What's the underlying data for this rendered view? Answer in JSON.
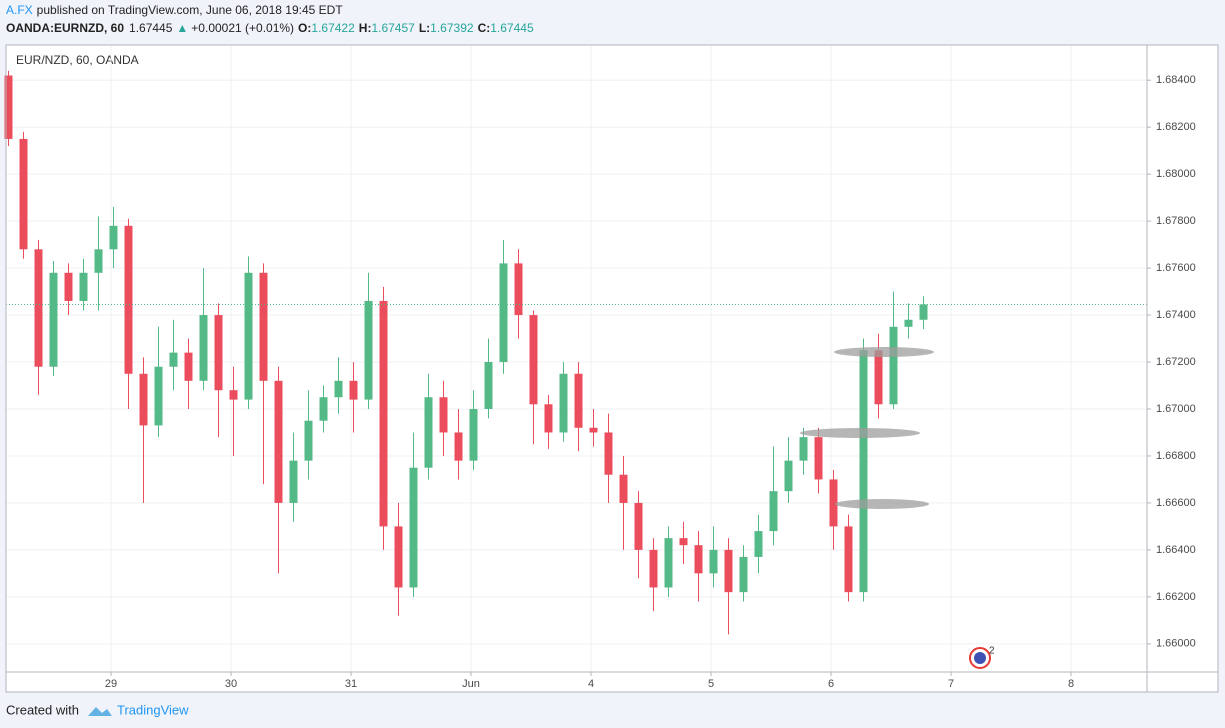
{
  "header": {
    "author": "A.FX",
    "published": "published on TradingView.com, June 06, 2018 19:45 EDT",
    "symbol": "OANDA:EURNZD, 60",
    "price": 1.67445,
    "change": "+0.00021 (+0.01%)",
    "ohlc": [
      {
        "label": "O:",
        "value": 1.67422
      },
      {
        "label": "H:",
        "value": 1.67457
      },
      {
        "label": "L:",
        "value": 1.67392
      },
      {
        "label": "C:",
        "value": 1.67445
      }
    ]
  },
  "footer": {
    "created": "Created with",
    "brand": "TradingView"
  },
  "chart_data": {
    "type": "candlestick",
    "title": "EUR/NZD, 60, OANDA",
    "badge": "2",
    "up_color": "#53b987",
    "down_color": "#eb4d5c",
    "grid": true,
    "last_price": 1.67445,
    "xlim": [
      0,
      228.2
    ],
    "xticks": [
      {
        "value": 21,
        "label": "29"
      },
      {
        "value": 45,
        "label": "30"
      },
      {
        "value": 69,
        "label": "31"
      },
      {
        "value": 93,
        "label": "Jun"
      },
      {
        "value": 117,
        "label": "4"
      },
      {
        "value": 141,
        "label": "5"
      },
      {
        "value": 165,
        "label": "6"
      },
      {
        "value": 189,
        "label": "7"
      },
      {
        "value": 213,
        "label": "8"
      }
    ],
    "ylim": [
      1.6588,
      1.6855
    ],
    "yticks": [
      {
        "value": 1.66,
        "label": "1.66000"
      },
      {
        "value": 1.662,
        "label": "1.66200"
      },
      {
        "value": 1.664,
        "label": "1.66400"
      },
      {
        "value": 1.666,
        "label": "1.66600"
      },
      {
        "value": 1.668,
        "label": "1.66800"
      },
      {
        "value": 1.67,
        "label": "1.67000"
      },
      {
        "value": 1.672,
        "label": "1.67200"
      },
      {
        "value": 1.674,
        "label": "1.67400"
      },
      {
        "value": 1.676,
        "label": "1.67600"
      },
      {
        "value": 1.678,
        "label": "1.67800"
      },
      {
        "value": 1.68,
        "label": "1.68000"
      },
      {
        "value": 1.682,
        "label": "1.68200"
      },
      {
        "value": 1.684,
        "label": "1.68400"
      }
    ],
    "x": [
      0.5,
      3.5,
      6.5,
      9.5,
      12.5,
      15.5,
      18.5,
      21.5,
      24.5,
      27.5,
      30.5,
      33.5,
      36.5,
      39.5,
      42.5,
      45.5,
      48.5,
      51.5,
      54.5,
      57.5,
      60.5,
      63.5,
      66.5,
      69.5,
      72.5,
      75.5,
      78.5,
      81.5,
      84.5,
      87.5,
      90.5,
      93.5,
      96.5,
      99.5,
      102.5,
      105.5,
      108.5,
      111.5,
      114.5,
      117.5,
      120.5,
      123.5,
      126.5,
      129.5,
      132.5,
      135.5,
      138.5,
      141.5,
      144.5,
      147.5,
      150.5,
      153.5,
      156.5,
      159.5,
      162.5,
      165.5,
      168.5,
      171.5,
      174.5,
      177.5,
      180.5,
      183.5
    ],
    "open": [
      1.6842,
      1.6815,
      1.6768,
      1.6718,
      1.6758,
      1.6746,
      1.6758,
      1.6768,
      1.6778,
      1.6715,
      1.6693,
      1.6718,
      1.6724,
      1.6712,
      1.674,
      1.6708,
      1.6704,
      1.6758,
      1.6712,
      1.666,
      1.6678,
      1.6695,
      1.6705,
      1.6712,
      1.6704,
      1.6746,
      1.665,
      1.6624,
      1.6675,
      1.6705,
      1.669,
      1.6678,
      1.67,
      1.672,
      1.6762,
      1.674,
      1.6702,
      1.669,
      1.6715,
      1.6692,
      1.669,
      1.6672,
      1.666,
      1.664,
      1.6624,
      1.6645,
      1.6642,
      1.663,
      1.664,
      1.6622,
      1.6637,
      1.6648,
      1.6665,
      1.6678,
      1.6688,
      1.667,
      1.665,
      1.6622,
      1.6725,
      1.6702,
      1.6735,
      1.6738
    ],
    "high": [
      1.6844,
      1.6818,
      1.6772,
      1.6763,
      1.6762,
      1.6764,
      1.6782,
      1.6786,
      1.6781,
      1.6722,
      1.6735,
      1.6738,
      1.673,
      1.676,
      1.6745,
      1.6718,
      1.6765,
      1.6762,
      1.6718,
      1.669,
      1.6708,
      1.671,
      1.6722,
      1.672,
      1.6758,
      1.6752,
      1.666,
      1.669,
      1.6715,
      1.6712,
      1.67,
      1.6708,
      1.673,
      1.6772,
      1.6768,
      1.6742,
      1.6706,
      1.672,
      1.672,
      1.67,
      1.6698,
      1.668,
      1.6665,
      1.6645,
      1.665,
      1.6652,
      1.6648,
      1.665,
      1.6645,
      1.6642,
      1.6655,
      1.6684,
      1.6688,
      1.6692,
      1.6692,
      1.6674,
      1.6655,
      1.673,
      1.6732,
      1.675,
      1.6745,
      1.6748
    ],
    "low": [
      1.6812,
      1.6764,
      1.6706,
      1.6714,
      1.674,
      1.6742,
      1.6742,
      1.676,
      1.67,
      1.666,
      1.6688,
      1.6708,
      1.67,
      1.6708,
      1.6688,
      1.668,
      1.67,
      1.6668,
      1.663,
      1.6652,
      1.667,
      1.669,
      1.6698,
      1.669,
      1.67,
      1.664,
      1.6612,
      1.662,
      1.667,
      1.668,
      1.667,
      1.6674,
      1.6696,
      1.6715,
      1.673,
      1.6685,
      1.6683,
      1.6686,
      1.6682,
      1.6684,
      1.666,
      1.664,
      1.6628,
      1.6614,
      1.662,
      1.6634,
      1.6618,
      1.6624,
      1.6604,
      1.6618,
      1.663,
      1.6642,
      1.666,
      1.6672,
      1.6664,
      1.664,
      1.6618,
      1.6618,
      1.6696,
      1.67,
      1.673,
      1.6734
    ],
    "close": [
      1.6815,
      1.6768,
      1.6718,
      1.6758,
      1.6746,
      1.6758,
      1.6768,
      1.6778,
      1.6715,
      1.6693,
      1.6718,
      1.6724,
      1.6712,
      1.674,
      1.6708,
      1.6704,
      1.6758,
      1.6712,
      1.666,
      1.6678,
      1.6695,
      1.6705,
      1.6712,
      1.6704,
      1.6746,
      1.665,
      1.6624,
      1.6675,
      1.6705,
      1.669,
      1.6678,
      1.67,
      1.672,
      1.6762,
      1.674,
      1.6702,
      1.669,
      1.6715,
      1.6692,
      1.669,
      1.6672,
      1.666,
      1.664,
      1.6624,
      1.6645,
      1.6642,
      1.663,
      1.664,
      1.6622,
      1.6637,
      1.6648,
      1.6665,
      1.6678,
      1.6688,
      1.667,
      1.665,
      1.6622,
      1.6725,
      1.6702,
      1.6735,
      1.6738,
      1.67445
    ]
  }
}
